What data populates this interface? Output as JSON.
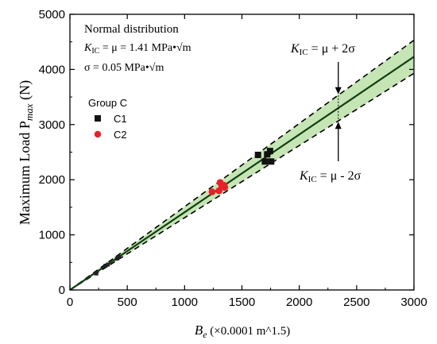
{
  "chart_data": {
    "type": "scatter",
    "xlabel": {
      "main": "B",
      "sub": "e",
      "rest": " (×0.0001 m^1.5)"
    },
    "ylabel": {
      "main": "Maximum Load P",
      "sub": "max",
      "rest": " (N)"
    },
    "xlim": [
      0,
      3000
    ],
    "ylim": [
      0,
      5000
    ],
    "x_ticks": [
      0,
      500,
      1000,
      1500,
      2000,
      2500,
      3000
    ],
    "y_ticks": [
      0,
      1000,
      2000,
      3000,
      4000,
      5000
    ],
    "grid": false,
    "mean_slope": 1.41,
    "band_slopes": [
      1.31,
      1.51
    ],
    "colors": {
      "mean_line": "#123d12",
      "band_fill": "#c5e5b4",
      "bound_line": "#000000",
      "c1": "#111111",
      "c2": "#e8202a"
    },
    "series": [
      {
        "name": "C1",
        "marker": "square",
        "color": "#111111",
        "points": [
          [
            1640,
            2450
          ],
          [
            1700,
            2330
          ],
          [
            1720,
            2460
          ],
          [
            1745,
            2520
          ],
          [
            1755,
            2330
          ]
        ]
      },
      {
        "name": "C2",
        "marker": "circle",
        "color": "#e8202a",
        "points": [
          [
            1240,
            1780
          ],
          [
            1300,
            1800
          ],
          [
            1310,
            1950
          ],
          [
            1325,
            1880
          ],
          [
            1345,
            1900
          ],
          [
            1350,
            1860
          ]
        ]
      }
    ],
    "small_points": [
      [
        230,
        300
      ],
      [
        310,
        440
      ],
      [
        330,
        460
      ],
      [
        410,
        570
      ],
      [
        430,
        600
      ]
    ],
    "legend": {
      "title": "Group C",
      "position": "upper-left",
      "items": [
        "C1",
        "C2"
      ]
    },
    "info_box": {
      "line1": "Normal distribution",
      "line2": {
        "k": "K",
        "ksub": "IC",
        "rest": " = μ =  1.41 MPa•√m"
      },
      "line3": "σ = 0.05 MPa•√m"
    },
    "annotations": {
      "upper": {
        "k": "K",
        "ksub": "IC",
        "rest": " = μ + 2σ"
      },
      "lower": {
        "k": "K",
        "ksub": "IC",
        "rest": " = μ - 2σ"
      },
      "arrow_x": 2340
    }
  }
}
